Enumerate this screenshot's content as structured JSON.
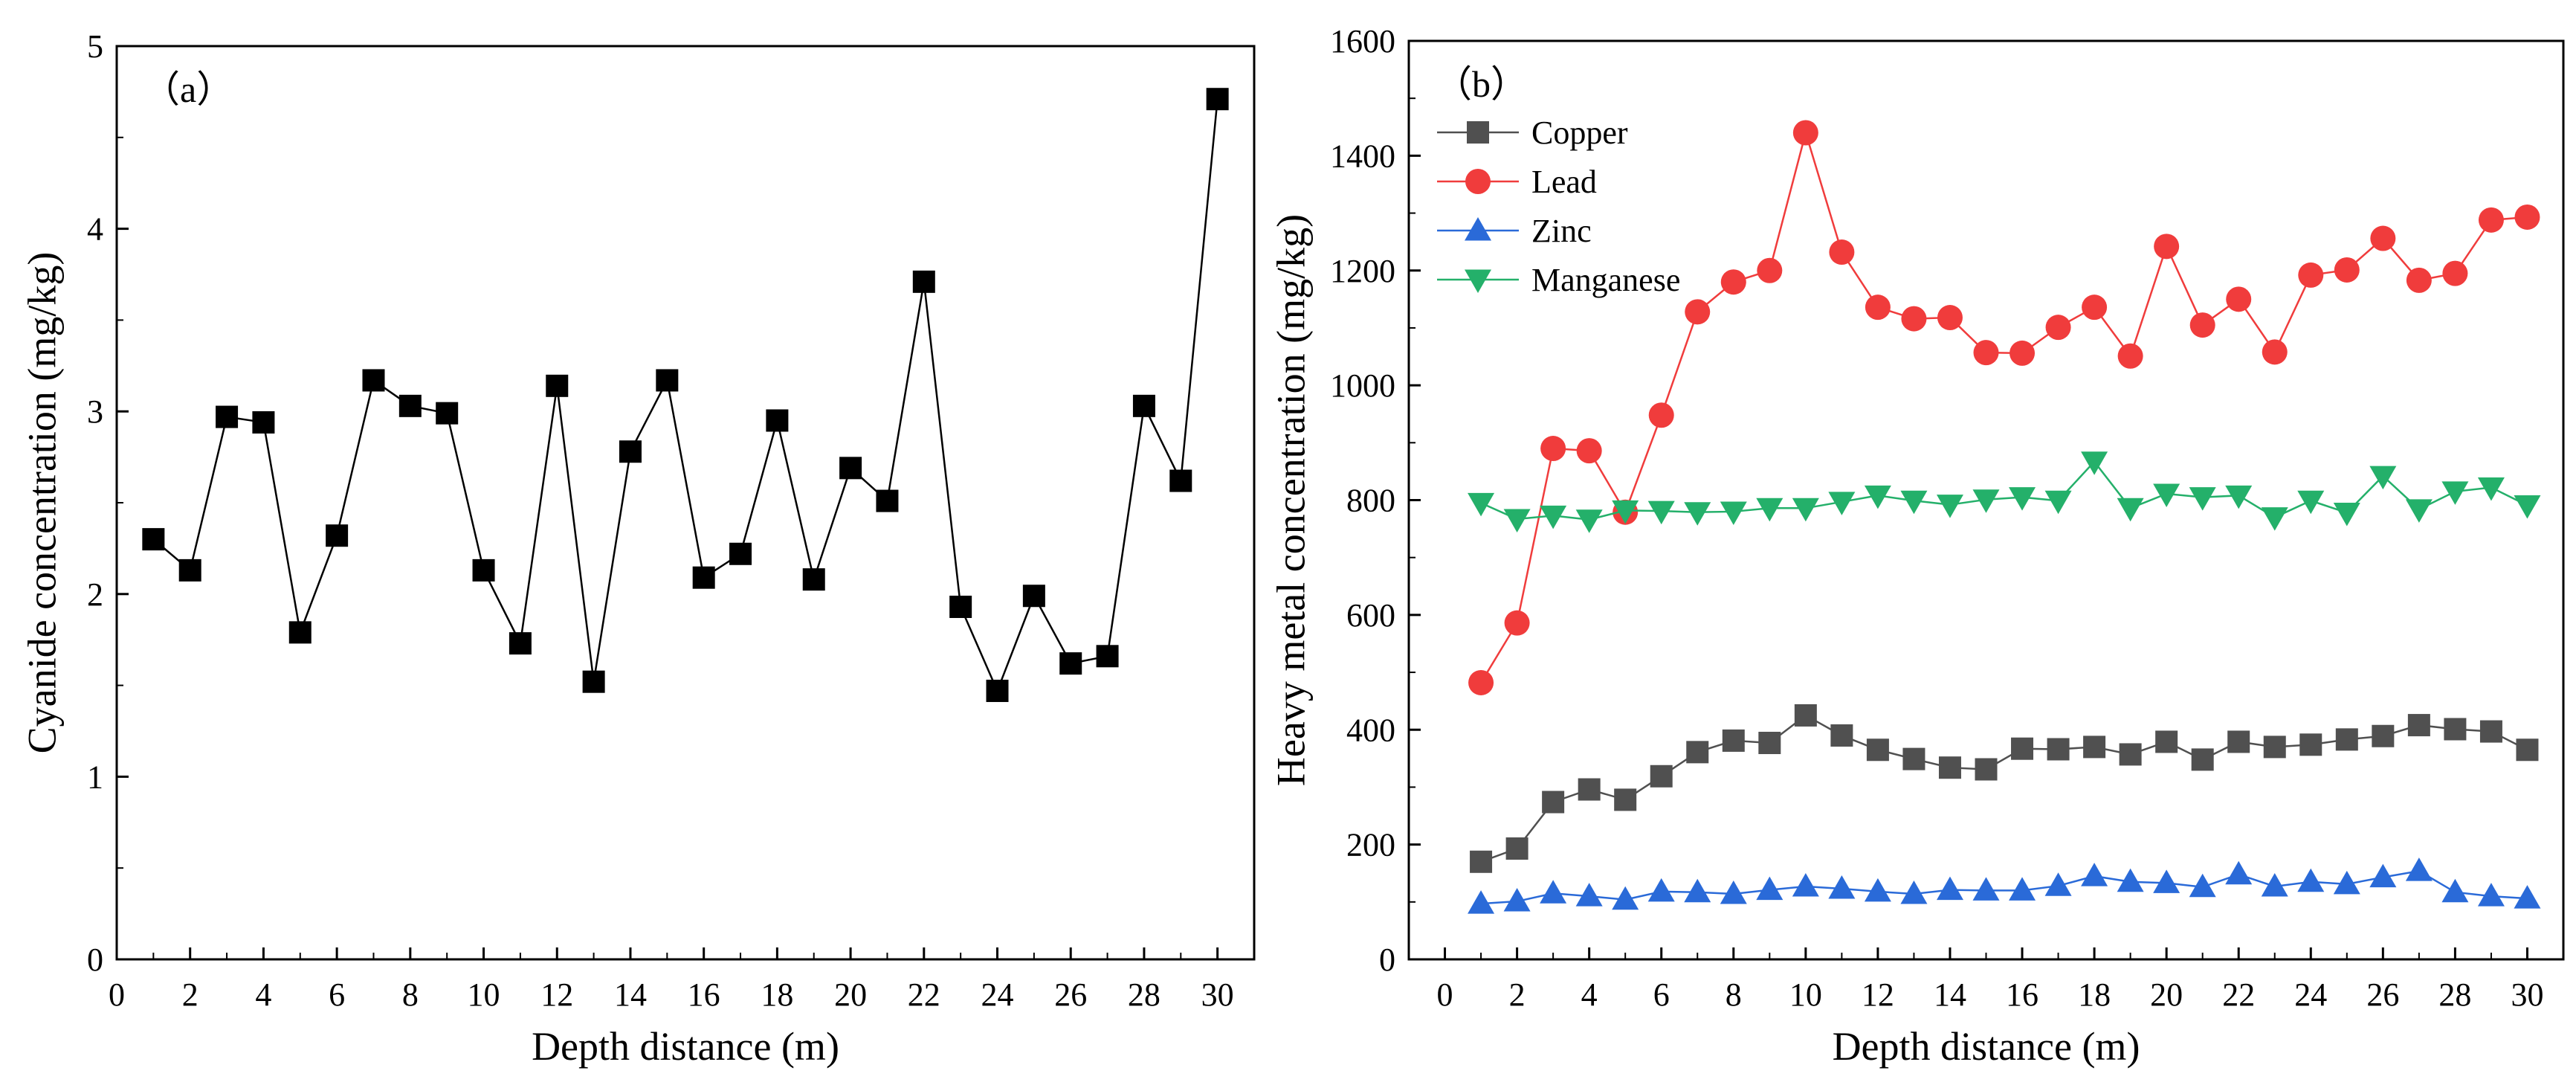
{
  "chart_data": [
    {
      "panel_label": "（a）",
      "type": "line",
      "title": "",
      "xlabel": "Depth distance (m)",
      "ylabel": "Cyanide concentration (mg/kg)",
      "xlim": [
        0,
        31
      ],
      "ylim": [
        0,
        5
      ],
      "xticks": [
        0,
        2,
        4,
        6,
        8,
        10,
        12,
        14,
        16,
        18,
        20,
        22,
        24,
        26,
        28,
        30
      ],
      "yticks": [
        0,
        1,
        2,
        3,
        4,
        5
      ],
      "legend": "none",
      "series": [
        {
          "name": "Cyanide",
          "color": "#000000",
          "marker": "square",
          "x": [
            1,
            2,
            3,
            4,
            5,
            6,
            7,
            8,
            9,
            10,
            11,
            12,
            13,
            14,
            15,
            16,
            17,
            18,
            19,
            20,
            21,
            22,
            23,
            24,
            25,
            26,
            27,
            28,
            29,
            30
          ],
          "values": [
            2.3,
            2.13,
            2.97,
            2.94,
            1.79,
            2.32,
            3.17,
            3.03,
            2.99,
            2.13,
            1.73,
            3.14,
            1.52,
            2.78,
            3.17,
            2.09,
            2.22,
            2.95,
            2.08,
            2.69,
            2.51,
            3.71,
            1.93,
            1.47,
            1.99,
            1.62,
            1.66,
            3.03,
            2.62,
            4.71
          ]
        }
      ]
    },
    {
      "panel_label": "（b）",
      "type": "line",
      "title": "",
      "xlabel": "Depth distance (m)",
      "ylabel": "Heavy metal concentration (mg/kg)",
      "xlim": [
        -1,
        31
      ],
      "ylim": [
        0,
        1600
      ],
      "xticks": [
        0,
        2,
        4,
        6,
        8,
        10,
        12,
        14,
        16,
        18,
        20,
        22,
        24,
        26,
        28,
        30
      ],
      "yticks": [
        0,
        200,
        400,
        600,
        800,
        1000,
        1200,
        1400,
        1600
      ],
      "legend": "top-left",
      "series": [
        {
          "name": "Copper",
          "color": "#505050",
          "marker": "square",
          "x": [
            1,
            2,
            3,
            4,
            5,
            6,
            7,
            8,
            9,
            10,
            11,
            12,
            13,
            14,
            15,
            16,
            17,
            18,
            19,
            20,
            21,
            22,
            23,
            24,
            25,
            26,
            27,
            28,
            29,
            30
          ],
          "values": [
            170,
            193,
            274,
            296,
            278,
            319,
            361,
            381,
            377,
            425,
            390,
            365,
            349,
            334,
            331,
            367,
            366,
            370,
            357,
            379,
            348,
            379,
            370,
            374,
            383,
            389,
            408,
            401,
            397,
            365
          ]
        },
        {
          "name": "Lead",
          "color": "#f03c3c",
          "marker": "circle",
          "x": [
            1,
            2,
            3,
            4,
            5,
            6,
            7,
            8,
            9,
            10,
            11,
            12,
            13,
            14,
            15,
            16,
            17,
            18,
            19,
            20,
            21,
            22,
            23,
            24,
            25,
            26,
            27,
            28,
            29,
            30
          ],
          "values": [
            482,
            586,
            890,
            886,
            779,
            948,
            1128,
            1180,
            1200,
            1440,
            1232,
            1136,
            1116,
            1118,
            1057,
            1056,
            1101,
            1136,
            1051,
            1242,
            1105,
            1150,
            1058,
            1192,
            1201,
            1256,
            1183,
            1195,
            1288,
            1293
          ]
        },
        {
          "name": "Zinc",
          "color": "#2a6ad8",
          "marker": "triangle-up",
          "x": [
            1,
            2,
            3,
            4,
            5,
            6,
            7,
            8,
            9,
            10,
            11,
            12,
            13,
            14,
            15,
            16,
            17,
            18,
            19,
            20,
            21,
            22,
            23,
            24,
            25,
            26,
            27,
            28,
            29,
            30
          ],
          "values": [
            97,
            101,
            115,
            110,
            104,
            118,
            117,
            114,
            121,
            127,
            123,
            118,
            114,
            121,
            120,
            120,
            128,
            145,
            135,
            133,
            126,
            148,
            127,
            135,
            131,
            143,
            154,
            117,
            110,
            106
          ]
        },
        {
          "name": "Manganese",
          "color": "#24b06a",
          "marker": "triangle-down",
          "x": [
            1,
            2,
            3,
            4,
            5,
            6,
            7,
            8,
            9,
            10,
            11,
            12,
            13,
            14,
            15,
            16,
            17,
            18,
            19,
            20,
            21,
            22,
            23,
            24,
            25,
            26,
            27,
            28,
            29,
            30
          ],
          "values": [
            795,
            767,
            773,
            766,
            782,
            781,
            779,
            780,
            786,
            786,
            797,
            808,
            799,
            792,
            801,
            805,
            799,
            867,
            786,
            811,
            805,
            808,
            770,
            799,
            778,
            842,
            784,
            815,
            822,
            791
          ]
        }
      ]
    }
  ]
}
